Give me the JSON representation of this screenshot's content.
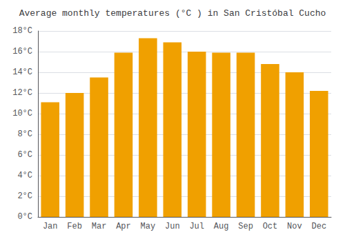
{
  "chart_data": {
    "type": "bar",
    "title": "Average monthly temperatures (°C ) in San Cristóbal Cucho",
    "categories": [
      "Jan",
      "Feb",
      "Mar",
      "Apr",
      "May",
      "Jun",
      "Jul",
      "Aug",
      "Sep",
      "Oct",
      "Nov",
      "Dec"
    ],
    "values": [
      11.1,
      12.0,
      13.5,
      15.9,
      17.3,
      16.9,
      16.0,
      15.9,
      15.9,
      14.8,
      14.0,
      12.2
    ],
    "color": "#F0A000",
    "ylim": [
      0,
      18
    ],
    "yticks": [
      {
        "value": 0,
        "label": "0°C"
      },
      {
        "value": 2,
        "label": "2°C"
      },
      {
        "value": 4,
        "label": "4°C"
      },
      {
        "value": 6,
        "label": "6°C"
      },
      {
        "value": 8,
        "label": "8°C"
      },
      {
        "value": 10,
        "label": "10°C"
      },
      {
        "value": 12,
        "label": "12°C"
      },
      {
        "value": 14,
        "label": "14°C"
      },
      {
        "value": 16,
        "label": "16°C"
      },
      {
        "value": 18,
        "label": "18°C"
      }
    ],
    "grid": true
  }
}
